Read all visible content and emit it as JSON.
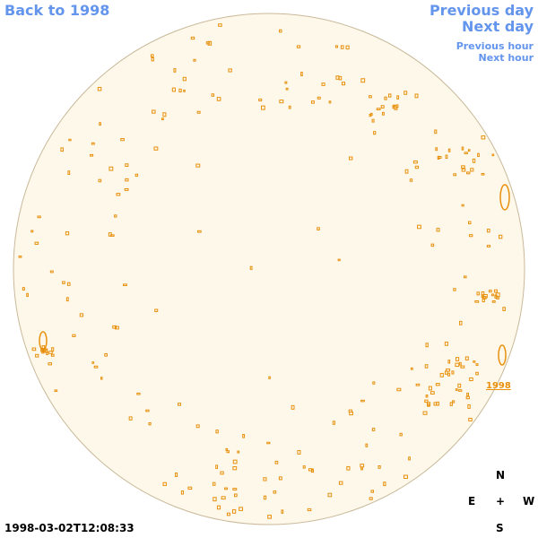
{
  "links": {
    "back": "Back to 1998",
    "previous_day": "Previous day",
    "next_day": "Next day",
    "previous_hour": "Previous hour",
    "next_hour": "Next hour"
  },
  "region_label": "1998",
  "compass": {
    "north": "N",
    "east": "E",
    "center": "+",
    "west": "W",
    "south": "S"
  },
  "timestamp": "1998-03-02T12:08:33"
}
